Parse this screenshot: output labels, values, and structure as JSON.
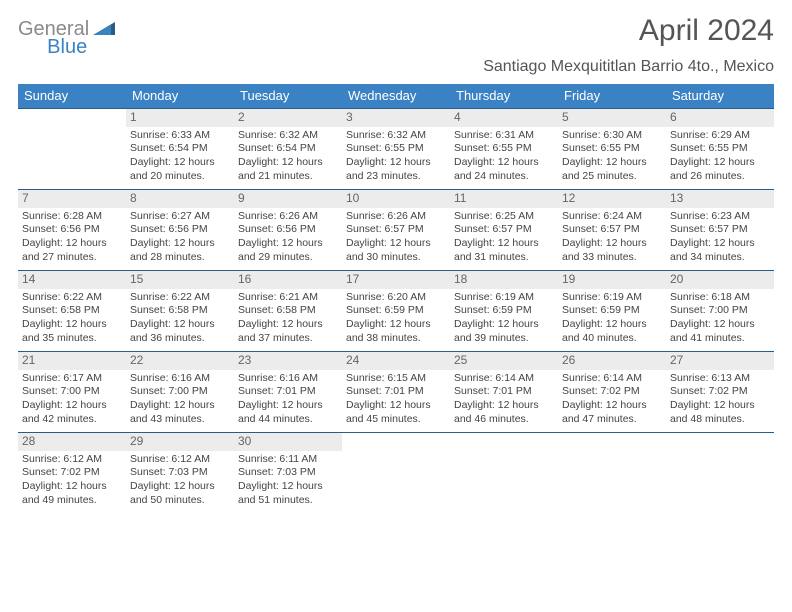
{
  "brand": {
    "word1": "General",
    "word2": "Blue"
  },
  "title": "April 2024",
  "location": "Santiago Mexquititlan Barrio 4to., Mexico",
  "colors": {
    "header_bg": "#3b82c4",
    "header_text": "#ffffff",
    "week_divider": "#2a5d86",
    "daynum_bg": "#ececec",
    "daynum_text": "#666666",
    "body_text": "#444444",
    "brand_gray": "#8a8a8a",
    "brand_blue": "#3b82c4"
  },
  "fonts": {
    "body_pt": 10.5,
    "dow_pt": 13,
    "title_pt": 30,
    "location_pt": 16
  },
  "days_of_week": [
    "Sunday",
    "Monday",
    "Tuesday",
    "Wednesday",
    "Thursday",
    "Friday",
    "Saturday"
  ],
  "weeks": [
    [
      null,
      {
        "n": "1",
        "sr": "Sunrise: 6:33 AM",
        "ss": "Sunset: 6:54 PM",
        "d1": "Daylight: 12 hours",
        "d2": "and 20 minutes."
      },
      {
        "n": "2",
        "sr": "Sunrise: 6:32 AM",
        "ss": "Sunset: 6:54 PM",
        "d1": "Daylight: 12 hours",
        "d2": "and 21 minutes."
      },
      {
        "n": "3",
        "sr": "Sunrise: 6:32 AM",
        "ss": "Sunset: 6:55 PM",
        "d1": "Daylight: 12 hours",
        "d2": "and 23 minutes."
      },
      {
        "n": "4",
        "sr": "Sunrise: 6:31 AM",
        "ss": "Sunset: 6:55 PM",
        "d1": "Daylight: 12 hours",
        "d2": "and 24 minutes."
      },
      {
        "n": "5",
        "sr": "Sunrise: 6:30 AM",
        "ss": "Sunset: 6:55 PM",
        "d1": "Daylight: 12 hours",
        "d2": "and 25 minutes."
      },
      {
        "n": "6",
        "sr": "Sunrise: 6:29 AM",
        "ss": "Sunset: 6:55 PM",
        "d1": "Daylight: 12 hours",
        "d2": "and 26 minutes."
      }
    ],
    [
      {
        "n": "7",
        "sr": "Sunrise: 6:28 AM",
        "ss": "Sunset: 6:56 PM",
        "d1": "Daylight: 12 hours",
        "d2": "and 27 minutes."
      },
      {
        "n": "8",
        "sr": "Sunrise: 6:27 AM",
        "ss": "Sunset: 6:56 PM",
        "d1": "Daylight: 12 hours",
        "d2": "and 28 minutes."
      },
      {
        "n": "9",
        "sr": "Sunrise: 6:26 AM",
        "ss": "Sunset: 6:56 PM",
        "d1": "Daylight: 12 hours",
        "d2": "and 29 minutes."
      },
      {
        "n": "10",
        "sr": "Sunrise: 6:26 AM",
        "ss": "Sunset: 6:57 PM",
        "d1": "Daylight: 12 hours",
        "d2": "and 30 minutes."
      },
      {
        "n": "11",
        "sr": "Sunrise: 6:25 AM",
        "ss": "Sunset: 6:57 PM",
        "d1": "Daylight: 12 hours",
        "d2": "and 31 minutes."
      },
      {
        "n": "12",
        "sr": "Sunrise: 6:24 AM",
        "ss": "Sunset: 6:57 PM",
        "d1": "Daylight: 12 hours",
        "d2": "and 33 minutes."
      },
      {
        "n": "13",
        "sr": "Sunrise: 6:23 AM",
        "ss": "Sunset: 6:57 PM",
        "d1": "Daylight: 12 hours",
        "d2": "and 34 minutes."
      }
    ],
    [
      {
        "n": "14",
        "sr": "Sunrise: 6:22 AM",
        "ss": "Sunset: 6:58 PM",
        "d1": "Daylight: 12 hours",
        "d2": "and 35 minutes."
      },
      {
        "n": "15",
        "sr": "Sunrise: 6:22 AM",
        "ss": "Sunset: 6:58 PM",
        "d1": "Daylight: 12 hours",
        "d2": "and 36 minutes."
      },
      {
        "n": "16",
        "sr": "Sunrise: 6:21 AM",
        "ss": "Sunset: 6:58 PM",
        "d1": "Daylight: 12 hours",
        "d2": "and 37 minutes."
      },
      {
        "n": "17",
        "sr": "Sunrise: 6:20 AM",
        "ss": "Sunset: 6:59 PM",
        "d1": "Daylight: 12 hours",
        "d2": "and 38 minutes."
      },
      {
        "n": "18",
        "sr": "Sunrise: 6:19 AM",
        "ss": "Sunset: 6:59 PM",
        "d1": "Daylight: 12 hours",
        "d2": "and 39 minutes."
      },
      {
        "n": "19",
        "sr": "Sunrise: 6:19 AM",
        "ss": "Sunset: 6:59 PM",
        "d1": "Daylight: 12 hours",
        "d2": "and 40 minutes."
      },
      {
        "n": "20",
        "sr": "Sunrise: 6:18 AM",
        "ss": "Sunset: 7:00 PM",
        "d1": "Daylight: 12 hours",
        "d2": "and 41 minutes."
      }
    ],
    [
      {
        "n": "21",
        "sr": "Sunrise: 6:17 AM",
        "ss": "Sunset: 7:00 PM",
        "d1": "Daylight: 12 hours",
        "d2": "and 42 minutes."
      },
      {
        "n": "22",
        "sr": "Sunrise: 6:16 AM",
        "ss": "Sunset: 7:00 PM",
        "d1": "Daylight: 12 hours",
        "d2": "and 43 minutes."
      },
      {
        "n": "23",
        "sr": "Sunrise: 6:16 AM",
        "ss": "Sunset: 7:01 PM",
        "d1": "Daylight: 12 hours",
        "d2": "and 44 minutes."
      },
      {
        "n": "24",
        "sr": "Sunrise: 6:15 AM",
        "ss": "Sunset: 7:01 PM",
        "d1": "Daylight: 12 hours",
        "d2": "and 45 minutes."
      },
      {
        "n": "25",
        "sr": "Sunrise: 6:14 AM",
        "ss": "Sunset: 7:01 PM",
        "d1": "Daylight: 12 hours",
        "d2": "and 46 minutes."
      },
      {
        "n": "26",
        "sr": "Sunrise: 6:14 AM",
        "ss": "Sunset: 7:02 PM",
        "d1": "Daylight: 12 hours",
        "d2": "and 47 minutes."
      },
      {
        "n": "27",
        "sr": "Sunrise: 6:13 AM",
        "ss": "Sunset: 7:02 PM",
        "d1": "Daylight: 12 hours",
        "d2": "and 48 minutes."
      }
    ],
    [
      {
        "n": "28",
        "sr": "Sunrise: 6:12 AM",
        "ss": "Sunset: 7:02 PM",
        "d1": "Daylight: 12 hours",
        "d2": "and 49 minutes."
      },
      {
        "n": "29",
        "sr": "Sunrise: 6:12 AM",
        "ss": "Sunset: 7:03 PM",
        "d1": "Daylight: 12 hours",
        "d2": "and 50 minutes."
      },
      {
        "n": "30",
        "sr": "Sunrise: 6:11 AM",
        "ss": "Sunset: 7:03 PM",
        "d1": "Daylight: 12 hours",
        "d2": "and 51 minutes."
      },
      null,
      null,
      null,
      null
    ]
  ]
}
